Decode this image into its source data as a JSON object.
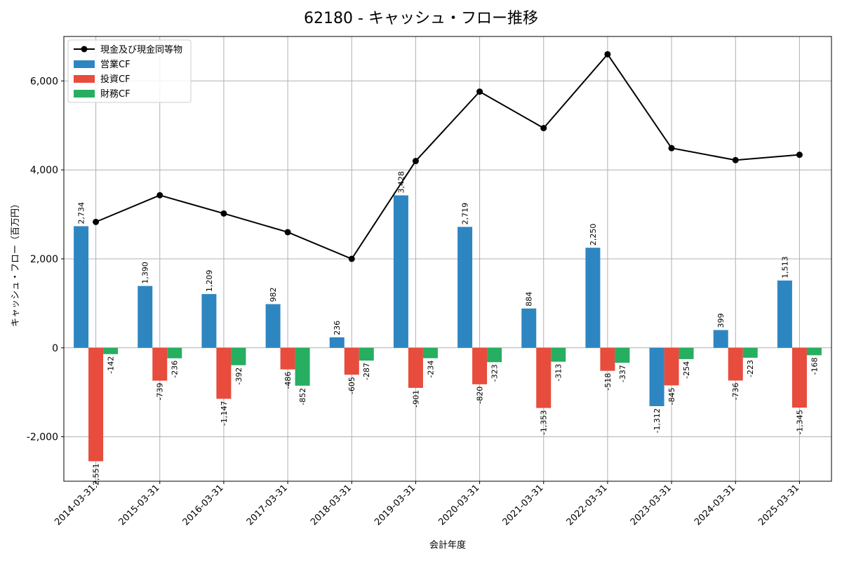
{
  "chart_data": {
    "type": "bar",
    "title": "62180 - キャッシュ・フロー推移",
    "xlabel": "会計年度",
    "ylabel": "キャッシュ・フロー（百万円）",
    "categories": [
      "2014-03-31",
      "2015-03-31",
      "2016-03-31",
      "2017-03-31",
      "2018-03-31",
      "2019-03-31",
      "2020-03-31",
      "2021-03-31",
      "2022-03-31",
      "2023-03-31",
      "2024-03-31",
      "2025-03-31"
    ],
    "ylim": [
      -3000,
      7000
    ],
    "yticks": [
      -2000,
      0,
      2000,
      4000,
      6000
    ],
    "ytick_labels": [
      "-2,000",
      "0",
      "2,000",
      "4,000",
      "6,000"
    ],
    "grid": true,
    "legend_position": "top-left",
    "series": [
      {
        "name": "営業CF",
        "type": "bar",
        "color": "#2e86c1",
        "values": [
          2734,
          1390,
          1209,
          982,
          236,
          3428,
          2719,
          884,
          2250,
          -1312,
          399,
          1513
        ],
        "labels": [
          "2,734",
          "1,390",
          "1,209",
          "982",
          "236",
          "3,428",
          "2,719",
          "884",
          "2,250",
          "-1,312",
          "399",
          "1,513"
        ]
      },
      {
        "name": "投資CF",
        "type": "bar",
        "color": "#e74c3c",
        "values": [
          -2551,
          -739,
          -1147,
          -486,
          -605,
          -901,
          -820,
          -1353,
          -518,
          -845,
          -736,
          -1345
        ],
        "labels": [
          "-2,551",
          "-739",
          "-1,147",
          "-486",
          "-605",
          "-901",
          "-820",
          "-1,353",
          "-518",
          "-845",
          "-736",
          "-1,345"
        ]
      },
      {
        "name": "財務CF",
        "type": "bar",
        "color": "#27ae60",
        "values": [
          -142,
          -236,
          -392,
          -852,
          -287,
          -234,
          -323,
          -313,
          -337,
          -254,
          -223,
          -168
        ],
        "labels": [
          "-142",
          "-236",
          "-392",
          "-852",
          "-287",
          "-234",
          "-323",
          "-313",
          "-337",
          "-254",
          "-223",
          "-168"
        ]
      },
      {
        "name": "現金及び現金同等物",
        "type": "line",
        "color": "#000000",
        "values": [
          2830,
          3430,
          3020,
          2600,
          2000,
          4200,
          5760,
          4940,
          6600,
          4490,
          4220,
          4340
        ]
      }
    ]
  }
}
